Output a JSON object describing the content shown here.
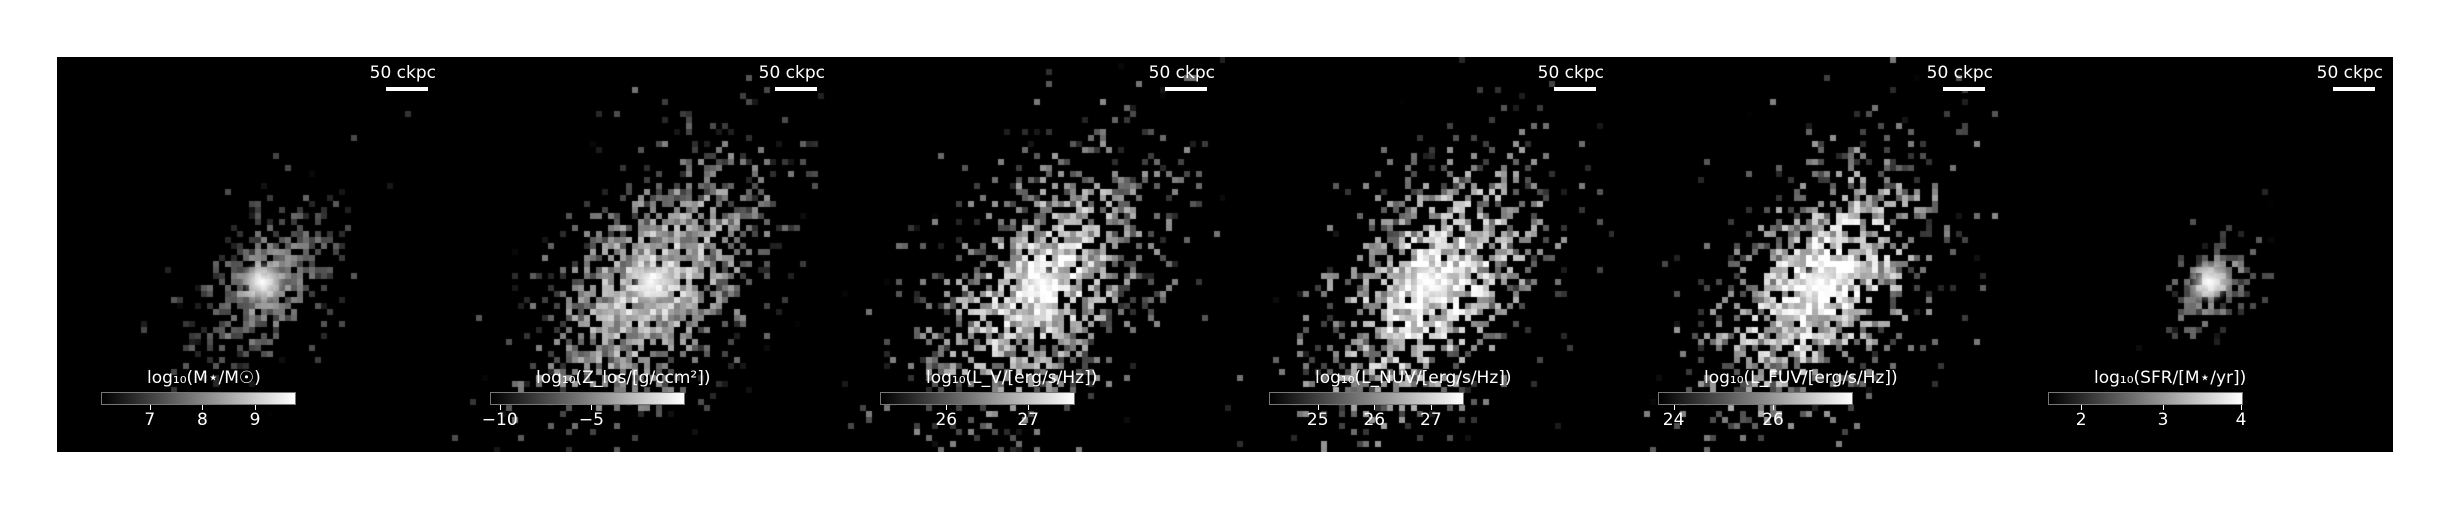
{
  "scalebar_text": "50 ckpc",
  "panels": [
    {
      "colorbar_label": "log₁₀(M⋆/M☉)",
      "ticks": [
        "7",
        "8",
        "9"
      ],
      "tick_fractions": [
        0.25,
        0.52,
        0.79
      ],
      "intensity": 0.55,
      "spread": 0.55
    },
    {
      "colorbar_label": "log₁₀(Z_los/[g/ccm²])",
      "ticks": [
        "−10",
        "−5"
      ],
      "tick_fractions": [
        0.05,
        0.52
      ],
      "intensity": 0.75,
      "spread": 1.0
    },
    {
      "colorbar_label": "log₁₀(L_V/[erg/s/Hz])",
      "ticks": [
        "26",
        "27"
      ],
      "tick_fractions": [
        0.34,
        0.76
      ],
      "intensity": 0.85,
      "spread": 1.0
    },
    {
      "colorbar_label": "log₁₀(L_NUV/[erg/s/Hz])",
      "ticks": [
        "25",
        "26",
        "27"
      ],
      "tick_fractions": [
        0.25,
        0.54,
        0.83
      ],
      "intensity": 0.9,
      "spread": 1.0
    },
    {
      "colorbar_label": "log₁₀(L_FUV/[erg/s/Hz])",
      "ticks": [
        "24",
        "26"
      ],
      "tick_fractions": [
        0.08,
        0.59
      ],
      "intensity": 0.9,
      "spread": 1.0
    },
    {
      "colorbar_label": "log₁₀(SFR/[M⋆/yr])",
      "ticks": [
        "2",
        "3",
        "4"
      ],
      "tick_fractions": [
        0.17,
        0.59,
        0.99
      ],
      "intensity": 0.6,
      "spread": 0.25
    }
  ]
}
